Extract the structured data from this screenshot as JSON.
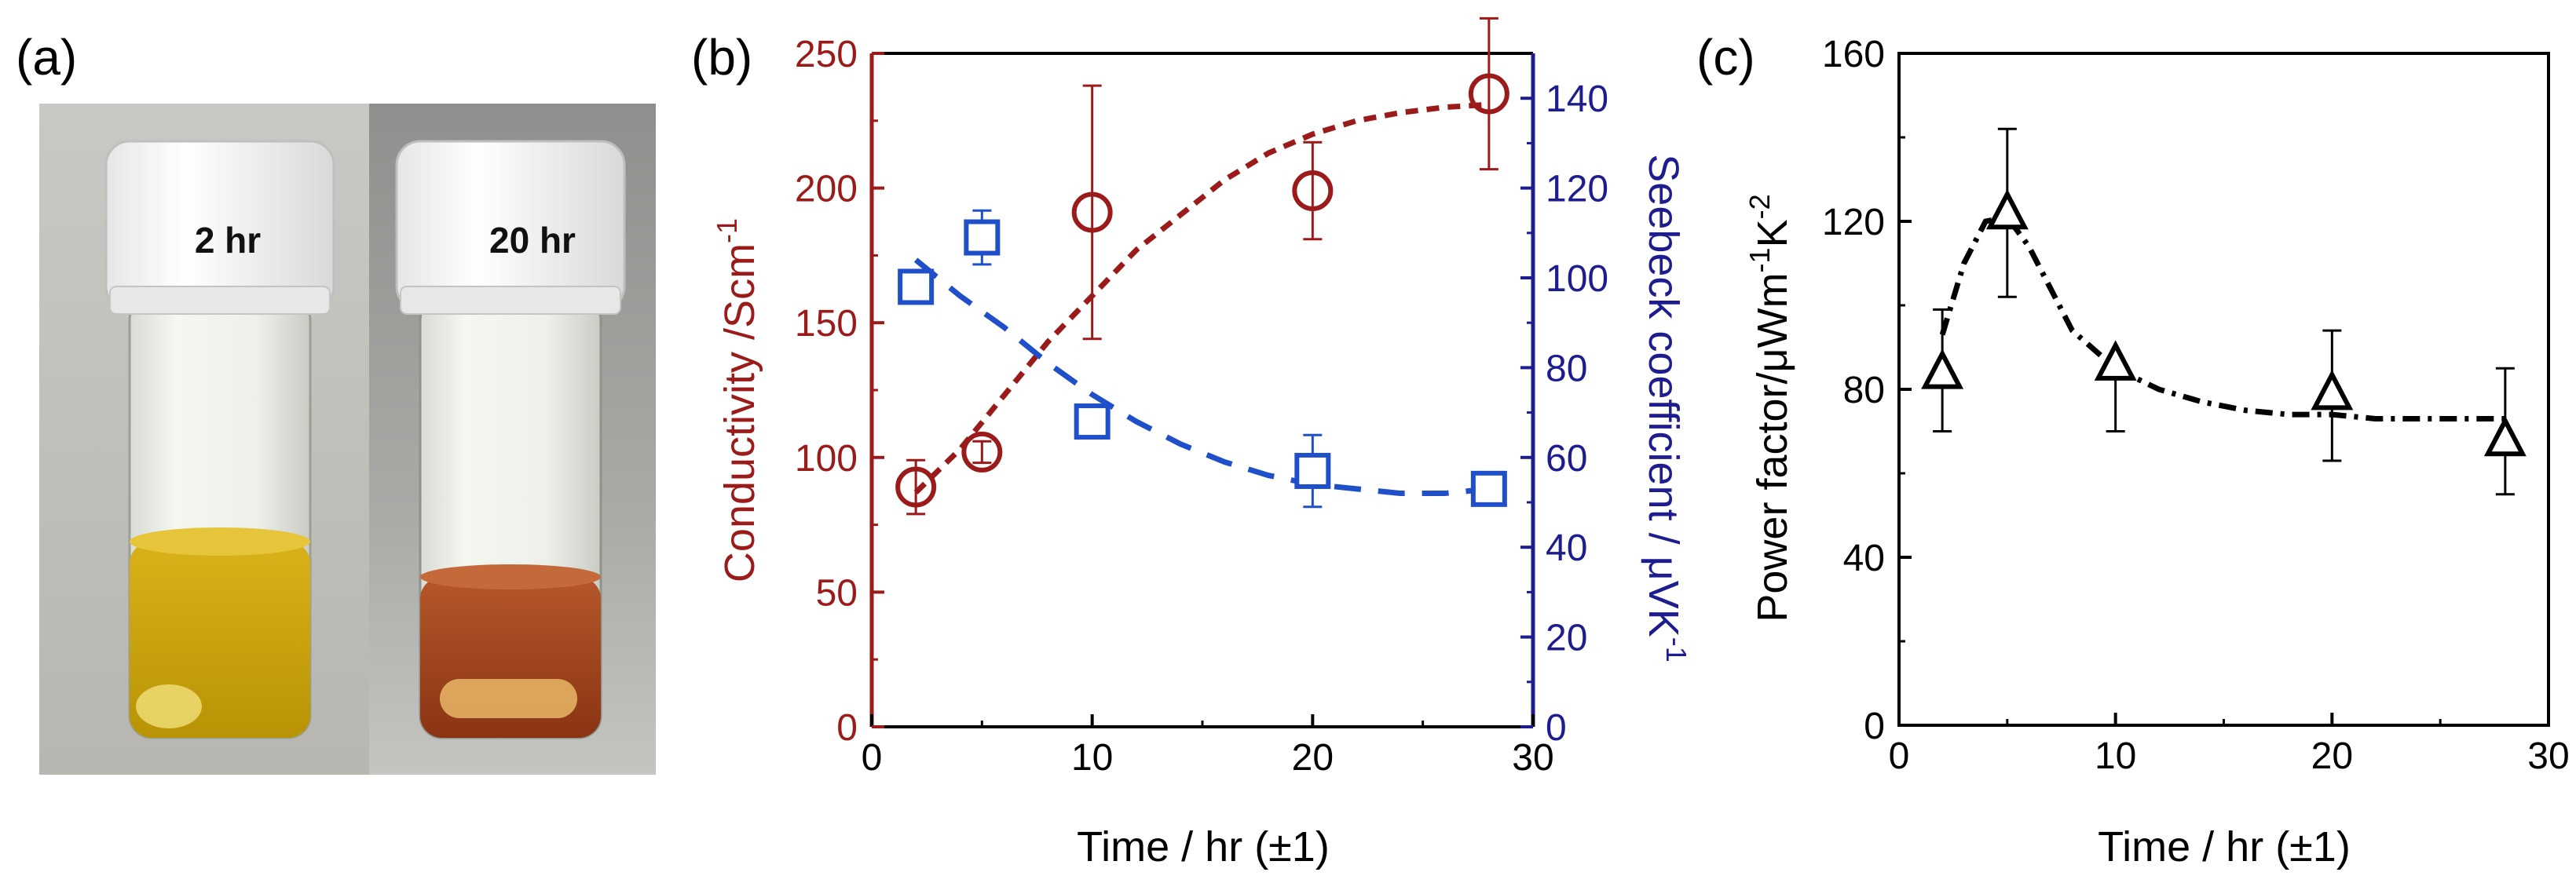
{
  "panels": {
    "a": {
      "label": "(a)",
      "vial_left_label": "2 hr",
      "vial_right_label": "20 hr"
    },
    "b": {
      "label": "(b)"
    },
    "c": {
      "label": "(c)"
    }
  },
  "colors": {
    "conductivity": "#9b1b1b",
    "seebeck": "#1f4fc9",
    "seebeck_axis": "#1d1d8f",
    "power": "#000000"
  },
  "chart_data": [
    {
      "id": "b",
      "type": "scatter",
      "title": "",
      "xlabel": "Time / hr (±1)",
      "xlim": [
        0,
        30
      ],
      "xticks": [
        0,
        10,
        20,
        30
      ],
      "ylabel_left": "Conductivity /Scm",
      "ylabel_left_sup": "-1",
      "ylim_left": [
        0,
        250
      ],
      "yticks_left": [
        0,
        50,
        100,
        150,
        200,
        250
      ],
      "ylabel_right": "Seebeck coefficient / μVK",
      "ylabel_right_sup": "-1",
      "ylim_right": [
        0,
        150
      ],
      "yticks_right": [
        0,
        20,
        40,
        60,
        80,
        100,
        120,
        140
      ],
      "series": [
        {
          "name": "Conductivity",
          "axis": "left",
          "marker": "circle",
          "x": [
            2,
            5,
            10,
            20,
            28
          ],
          "y": [
            89,
            102,
            191,
            199,
            235
          ],
          "err": [
            10,
            4,
            47,
            18,
            28
          ],
          "fit_x": [
            2,
            4,
            6,
            8,
            10,
            12,
            14,
            16,
            18,
            20,
            22,
            24,
            26,
            28
          ],
          "fit_y": [
            87,
            103,
            123,
            143,
            160,
            177,
            190,
            203,
            213,
            220,
            225,
            228,
            230,
            231
          ]
        },
        {
          "name": "Seebeck coefficient",
          "axis": "right",
          "marker": "square",
          "x": [
            2,
            5,
            10,
            20,
            28
          ],
          "y": [
            98,
            109,
            68,
            57,
            53
          ],
          "err": [
            0,
            6,
            0,
            8,
            0
          ],
          "fit_x": [
            2,
            4,
            6,
            8,
            10,
            12,
            14,
            16,
            18,
            20,
            22,
            24,
            26,
            28
          ],
          "fit_y": [
            104,
            96,
            89,
            81,
            74,
            68,
            63,
            59,
            56,
            54,
            53,
            52,
            52,
            53
          ]
        }
      ]
    },
    {
      "id": "c",
      "type": "scatter",
      "title": "",
      "xlabel": "Time / hr (±1)",
      "xlim": [
        0,
        30
      ],
      "xticks": [
        0,
        10,
        20,
        30
      ],
      "ylabel": "Power factor/μWm",
      "ylabel_sup1": "-1",
      "ylabel_mid": "K",
      "ylabel_sup2": "-2",
      "ylim": [
        0,
        160
      ],
      "yticks": [
        0,
        40,
        80,
        120,
        160
      ],
      "series": [
        {
          "name": "Power factor",
          "marker": "triangle",
          "x": [
            2,
            5,
            10,
            20,
            28
          ],
          "y": [
            84,
            122,
            86,
            79,
            68
          ],
          "err_low": [
            14,
            20,
            16,
            16,
            13
          ],
          "err_high": [
            15,
            20,
            0,
            15,
            17
          ],
          "fit_x": [
            2,
            3,
            4,
            5,
            6,
            7,
            8,
            10,
            12,
            14,
            16,
            18,
            20,
            22,
            24,
            26,
            28
          ],
          "fit_y": [
            93,
            110,
            120,
            121,
            114,
            104,
            94,
            85,
            80,
            77,
            75,
            74,
            74,
            73,
            73,
            73,
            73
          ]
        }
      ]
    }
  ]
}
